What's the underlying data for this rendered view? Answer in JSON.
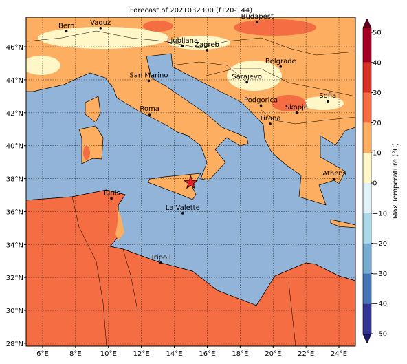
{
  "title": "Forecast of 2021032300 (f120-144)",
  "map": {
    "lonlim": [
      5,
      25
    ],
    "latlim": [
      27.83,
      47.8
    ],
    "lonticks": [
      {
        "value": 6,
        "label": "6°E"
      },
      {
        "value": 8,
        "label": "8°E"
      },
      {
        "value": 10,
        "label": "10°E"
      },
      {
        "value": 12,
        "label": "12°E"
      },
      {
        "value": 14,
        "label": "14°E"
      },
      {
        "value": 16,
        "label": "16°E"
      },
      {
        "value": 18,
        "label": "18°E"
      },
      {
        "value": 20,
        "label": "20°E"
      },
      {
        "value": 22,
        "label": "22°E"
      },
      {
        "value": 24,
        "label": "24°E"
      }
    ],
    "latticks": [
      {
        "value": 28,
        "label": "28°N"
      },
      {
        "value": 30,
        "label": "30°N"
      },
      {
        "value": 32,
        "label": "32°N"
      },
      {
        "value": 34,
        "label": "34°N"
      },
      {
        "value": 36,
        "label": "36°N"
      },
      {
        "value": 38,
        "label": "38°N"
      },
      {
        "value": 40,
        "label": "40°N"
      },
      {
        "value": 42,
        "label": "42°N"
      },
      {
        "value": 44,
        "label": "44°N"
      },
      {
        "value": 46,
        "label": "46°N"
      }
    ],
    "grid": true,
    "cities": [
      {
        "name": "Bern",
        "lon": 7.45,
        "lat": 46.95
      },
      {
        "name": "Vaduz",
        "lon": 9.52,
        "lat": 47.14
      },
      {
        "name": "Budapest",
        "lon": 19.04,
        "lat": 47.5
      },
      {
        "name": "Ljubljana",
        "lon": 14.5,
        "lat": 46.05
      },
      {
        "name": "Zagreb",
        "lon": 15.98,
        "lat": 45.8
      },
      {
        "name": "Belgrade",
        "lon": 20.46,
        "lat": 44.8
      },
      {
        "name": "San Marino",
        "lon": 12.45,
        "lat": 43.94
      },
      {
        "name": "Sarajevo",
        "lon": 18.41,
        "lat": 43.86
      },
      {
        "name": "Sofia",
        "lon": 23.32,
        "lat": 42.7
      },
      {
        "name": "Podgorica",
        "lon": 19.26,
        "lat": 42.44
      },
      {
        "name": "Skopje",
        "lon": 21.43,
        "lat": 42.0
      },
      {
        "name": "Roma",
        "lon": 12.5,
        "lat": 41.9
      },
      {
        "name": "Tirana",
        "lon": 19.82,
        "lat": 41.33
      },
      {
        "name": "Athens",
        "lon": 23.73,
        "lat": 37.98
      },
      {
        "name": "Tunis",
        "lon": 10.18,
        "lat": 36.8
      },
      {
        "name": "La Valette",
        "lon": 14.51,
        "lat": 35.9
      },
      {
        "name": "Tripoli",
        "lon": 13.18,
        "lat": 32.89
      }
    ],
    "marker": {
      "lon": 15.0,
      "lat": 37.75,
      "color": "#e8202a"
    }
  },
  "colorbar": {
    "label": "Max Temperature (°C)",
    "lim": [
      -50,
      50
    ],
    "ticks": [
      {
        "value": -50,
        "label": "−50"
      },
      {
        "value": -40,
        "label": "−40"
      },
      {
        "value": -30,
        "label": "−30"
      },
      {
        "value": -20,
        "label": "−20"
      },
      {
        "value": -10,
        "label": "−10"
      },
      0,
      10,
      20,
      30,
      40,
      50
    ],
    "colors": [
      "#313695",
      "#4575b4",
      "#74add1",
      "#abd9e9",
      "#e0f3f8",
      "#fff7c8",
      "#fdae61",
      "#f46d43",
      "#d73027",
      "#a50026"
    ]
  }
}
